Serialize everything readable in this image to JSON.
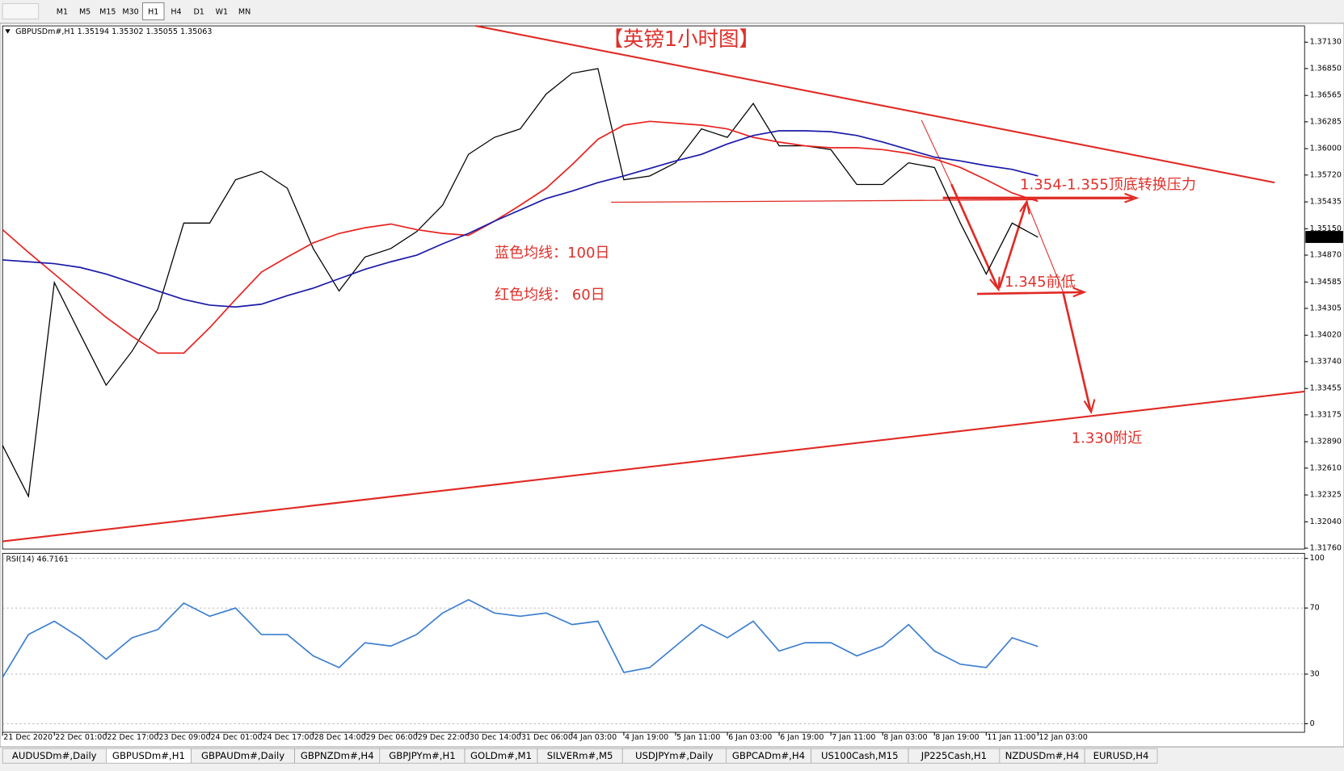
{
  "toolbar": {
    "timeframes": [
      "M1",
      "M5",
      "M15",
      "M30",
      "H1",
      "H4",
      "D1",
      "W1",
      "MN"
    ],
    "active": 4
  },
  "chart_data": [
    {
      "type": "line",
      "title": "【英镑1小时图】",
      "header": "GBPUSDm#,H1 1.35194 1.35302 1.35055 1.35063",
      "annotations": [
        "1.354-1.355顶底转换压力",
        "1.345前低",
        "1.330附近",
        "蓝色均线：100日",
        "红色均线： 60日"
      ],
      "categories": [
        "21 Dec 2020",
        null,
        "22 Dec 01:00",
        null,
        "22 Dec 17:00",
        null,
        "23 Dec 09:00",
        null,
        "24 Dec 01:00",
        null,
        "24 Dec 17:00",
        null,
        "28 Dec 14:00",
        null,
        "29 Dec 06:00",
        null,
        "29 Dec 22:00",
        null,
        "30 Dec 14:00",
        null,
        "31 Dec 06:00",
        null,
        "4 Jan 03:00",
        null,
        "4 Jan 19:00",
        null,
        "5 Jan 11:00",
        null,
        "6 Jan 03:00",
        null,
        "6 Jan 19:00",
        null,
        "7 Jan 11:00",
        null,
        "8 Jan 03:00",
        null,
        "8 Jan 19:00",
        null,
        "11 Jan 11:00",
        null,
        "12 Jan 03:00"
      ],
      "series": [
        {
          "color": "#000000",
          "values": [
            1.3285,
            1.3231,
            1.3458,
            1.3403,
            1.3349,
            1.3385,
            1.343,
            1.3521,
            1.3521,
            1.3567,
            1.3576,
            1.3558,
            1.3494,
            1.3449,
            1.3485,
            1.3494,
            1.3512,
            1.354,
            1.3594,
            1.3612,
            1.3621,
            1.3658,
            1.368,
            1.3685,
            1.3567,
            1.3571,
            1.3585,
            1.3621,
            1.3612,
            1.3648,
            1.3603,
            1.3603,
            1.3599,
            1.3562,
            1.3562,
            1.3585,
            1.358,
            1.3521,
            1.3467,
            1.3521,
            1.3506
          ]
        },
        {
          "color": "#e8231f",
          "values": [
            1.3514,
            1.349,
            1.3467,
            1.3444,
            1.3421,
            1.3401,
            1.3383,
            1.3383,
            1.341,
            1.344,
            1.3469,
            1.3485,
            1.35,
            1.351,
            1.3516,
            1.352,
            1.3514,
            1.351,
            1.3508,
            1.3523,
            1.354,
            1.3558,
            1.3583,
            1.361,
            1.3625,
            1.3629,
            1.3627,
            1.3625,
            1.3621,
            1.3612,
            1.3607,
            1.3603,
            1.3601,
            1.3601,
            1.3599,
            1.3595,
            1.3589,
            1.358,
            1.3567,
            1.3553,
            1.3544
          ]
        },
        {
          "color": "#1a1aa8",
          "values": [
            1.3482,
            1.348,
            1.3478,
            1.3474,
            1.3467,
            1.3458,
            1.3449,
            1.344,
            1.3434,
            1.3432,
            1.3435,
            1.3444,
            1.3452,
            1.3462,
            1.3472,
            1.348,
            1.3487,
            1.3499,
            1.351,
            1.3523,
            1.3535,
            1.3547,
            1.3555,
            1.3564,
            1.3571,
            1.3579,
            1.3587,
            1.3594,
            1.3605,
            1.3614,
            1.3619,
            1.3619,
            1.3618,
            1.3614,
            1.3607,
            1.3599,
            1.3591,
            1.3587,
            1.3582,
            1.3578,
            1.3571
          ]
        }
      ],
      "current_price": 1.35063,
      "ylim": [
        1.31751,
        1.37303
      ],
      "yticks": [
        {
          "value": 1.3713,
          "label": "1.37130"
        },
        {
          "value": 1.3685,
          "label": "1.36850"
        },
        1.36565,
        1.36285,
        {
          "value": 1.36,
          "label": "1.36000"
        },
        {
          "value": 1.3572,
          "label": "1.35720"
        },
        1.35435,
        {
          "value": 1.3515,
          "label": "1.35150"
        },
        {
          "value": 1.3487,
          "label": "1.34870"
        },
        1.34585,
        1.34305,
        {
          "value": 1.3402,
          "label": "1.34020"
        },
        {
          "value": 1.3374,
          "label": "1.33740"
        },
        1.33455,
        1.33175,
        {
          "value": 1.3289,
          "label": "1.32890"
        },
        {
          "value": 1.3261,
          "label": "1.32610"
        },
        1.32325,
        {
          "value": 1.3204,
          "label": "1.32040"
        },
        {
          "value": 1.3176,
          "label": "1.31760"
        }
      ],
      "grid": false
    },
    {
      "type": "line",
      "title": "RSI(14) 46.7161",
      "series": [
        {
          "color": "#3d7fcf",
          "values": [
            28,
            54,
            62,
            52,
            39,
            52,
            57,
            73,
            65,
            70,
            54,
            54,
            41,
            34,
            49,
            47,
            54,
            67,
            75,
            67,
            65,
            67,
            60,
            62,
            31,
            34,
            47,
            60,
            52,
            62,
            44,
            49,
            49,
            41,
            47,
            60,
            44,
            36,
            34,
            52,
            46.7
          ]
        }
      ],
      "ylim": [
        -5.2,
        103.1
      ],
      "yticks": [
        0,
        30,
        70,
        100
      ],
      "grid": true
    }
  ],
  "tabs": [
    "AUDUSDm#,Daily",
    "GBPUSDm#,H1",
    "GBPAUDm#,Daily",
    "GBPNZDm#,H4",
    "GBPJPYm#,H1",
    "GOLDm#,M1",
    "SILVERm#,M5",
    "USDJPYm#,Daily",
    "GBPCADm#,H4",
    "US100Cash,M15",
    "JP225Cash,H1",
    "NZDUSDm#,H4",
    "EURUSD,H4"
  ],
  "active_tab": 1
}
